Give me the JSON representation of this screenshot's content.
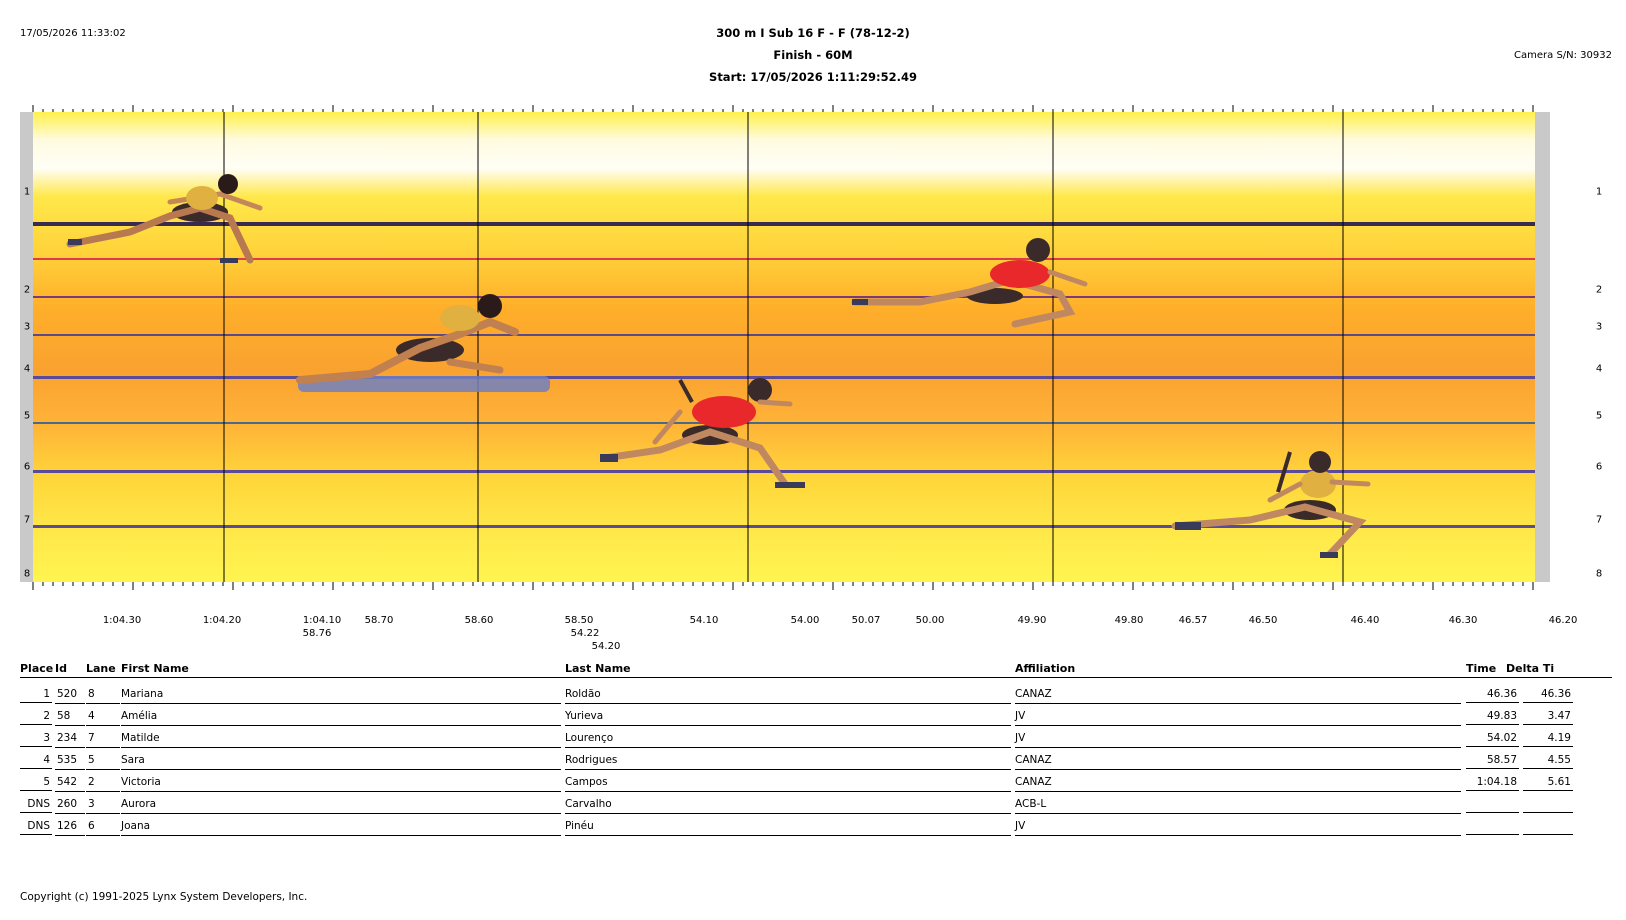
{
  "report": {
    "printed_at": "17/05/2026 11:33:02",
    "event_title": "300 m I Sub 16 F - F (78-12-2)",
    "finish_label": "Finish - 60M",
    "start_label": "Start: 17/05/2026 1:11:29:52.49",
    "camera": "Camera S/N: 30932"
  },
  "photo": {
    "lanes": [
      "1",
      "2",
      "3",
      "4",
      "5",
      "6",
      "7",
      "8"
    ],
    "time_labels": [
      {
        "text": "1:04.30",
        "row": 0
      },
      {
        "text": "1:04.20",
        "row": 0
      },
      {
        "text": "1:04.10",
        "row": 0
      },
      {
        "text": "58.76",
        "row": 1
      },
      {
        "text": "58.70",
        "row": 0
      },
      {
        "text": "58.60",
        "row": 0
      },
      {
        "text": "58.50",
        "row": 0
      },
      {
        "text": "54.22",
        "row": 1
      },
      {
        "text": "54.20",
        "row": 2
      },
      {
        "text": "54.10",
        "row": 0
      },
      {
        "text": "54.00",
        "row": 0
      },
      {
        "text": "50.07",
        "row": 0
      },
      {
        "text": "50.00",
        "row": 0
      },
      {
        "text": "49.90",
        "row": 0
      },
      {
        "text": "49.80",
        "row": 0
      },
      {
        "text": "46.57",
        "row": 0
      },
      {
        "text": "46.50",
        "row": 0
      },
      {
        "text": "46.40",
        "row": 0
      },
      {
        "text": "46.30",
        "row": 0
      },
      {
        "text": "46.20",
        "row": 0
      }
    ]
  },
  "table": {
    "headers": {
      "place": "Place",
      "id": "Id",
      "lane": "Lane",
      "first": "First Name",
      "last": "Last Name",
      "affiliation": "Affiliation",
      "time": "Time",
      "delta": "Delta Ti"
    },
    "rows": [
      {
        "place": "1",
        "id": "520",
        "lane": "8",
        "first": "Mariana",
        "last": "Roldão",
        "affiliation": "CANAZ",
        "time": "46.36",
        "delta": "46.36"
      },
      {
        "place": "2",
        "id": "58",
        "lane": "4",
        "first": "Amélia",
        "last": "Yurieva",
        "affiliation": "JV",
        "time": "49.83",
        "delta": "3.47"
      },
      {
        "place": "3",
        "id": "234",
        "lane": "7",
        "first": "Matilde",
        "last": "Lourenço",
        "affiliation": "JV",
        "time": "54.02",
        "delta": "4.19"
      },
      {
        "place": "4",
        "id": "535",
        "lane": "5",
        "first": "Sara",
        "last": "Rodrigues",
        "affiliation": "CANAZ",
        "time": "58.57",
        "delta": "4.55"
      },
      {
        "place": "5",
        "id": "542",
        "lane": "2",
        "first": "Victoria",
        "last": "Campos",
        "affiliation": "CANAZ",
        "time": "1:04.18",
        "delta": "5.61"
      },
      {
        "place": "DNS",
        "id": "260",
        "lane": "3",
        "first": "Aurora",
        "last": "Carvalho",
        "affiliation": "ACB-L",
        "time": "",
        "delta": ""
      },
      {
        "place": "DNS",
        "id": "126",
        "lane": "6",
        "first": "Joana",
        "last": "Pinéu",
        "affiliation": "JV",
        "time": "",
        "delta": ""
      }
    ]
  },
  "footer": {
    "copyright": "Copyright (c) 1991-2025 Lynx System Developers, Inc."
  }
}
